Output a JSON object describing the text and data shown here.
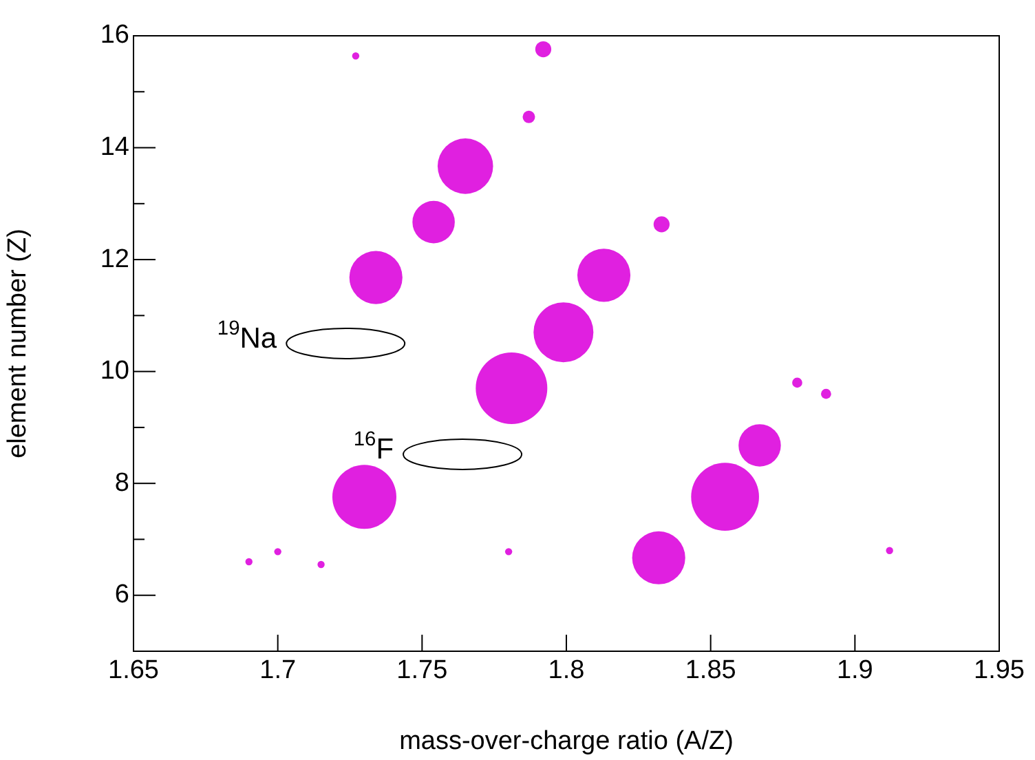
{
  "chart_data": {
    "type": "bubble",
    "xlabel": "mass-over-charge ratio (A/Z)",
    "ylabel": "element number (Z)",
    "xlim": [
      1.65,
      1.95
    ],
    "xticks": [
      1.65,
      1.7,
      1.75,
      1.8,
      1.85,
      1.9,
      1.95
    ],
    "ylim": [
      5,
      16
    ],
    "yticks": [
      {
        "value": 5,
        "label": null
      },
      6,
      {
        "value": 7,
        "label": null
      },
      8,
      {
        "value": 9,
        "label": null
      },
      10,
      {
        "value": 11,
        "label": null
      },
      12,
      {
        "value": 13,
        "label": null
      },
      14,
      {
        "value": 15,
        "label": null
      },
      16
    ],
    "grid": false,
    "legend": false,
    "series": [
      {
        "color": "#e020e0",
        "x": [
          1.765,
          1.754,
          1.734,
          1.813,
          1.799,
          1.781,
          1.73,
          1.855,
          1.832,
          1.867,
          1.792,
          1.787,
          1.833,
          1.69,
          1.7,
          1.715,
          1.727,
          1.78,
          1.912,
          1.88,
          1.89
        ],
        "values": [
          13.67,
          12.67,
          11.68,
          11.72,
          10.7,
          9.7,
          7.76,
          7.76,
          6.67,
          8.68,
          15.76,
          14.55,
          12.63,
          6.6,
          6.78,
          6.55,
          15.64,
          6.78,
          6.8,
          9.8,
          9.6
        ],
        "sizes": [
          0.6,
          0.35,
          0.55,
          0.55,
          0.7,
          1,
          0.8,
          0.9,
          0.55,
          0.35,
          0.05,
          0.03,
          0.05,
          0.01,
          0.01,
          0.01,
          0.01,
          0.01,
          0.01,
          0.02,
          0.02
        ]
      }
    ],
    "annotations": [
      "$^{19}$Na",
      "$^{16}$F"
    ]
  }
}
